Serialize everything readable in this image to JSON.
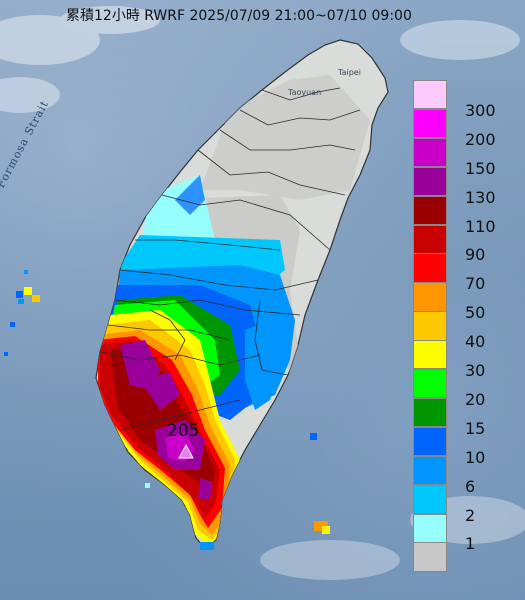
{
  "title": "累積12小時 RWRF 2025/07/09 21:00~07/10 09:00",
  "map_labels": {
    "strait": "Formosa Strait",
    "taoyuan": "Taoyuan",
    "taipei": "Taipei"
  },
  "max_marker": {
    "value": "205",
    "color": "#e880f0"
  },
  "legend": [
    {
      "label": "300",
      "color": "#fdcafd"
    },
    {
      "label": "200",
      "color": "#fd00fd"
    },
    {
      "label": "150",
      "color": "#c800c8"
    },
    {
      "label": "130",
      "color": "#9a009a"
    },
    {
      "label": "110",
      "color": "#9a0000"
    },
    {
      "label": "90",
      "color": "#c80000"
    },
    {
      "label": "70",
      "color": "#fd0000"
    },
    {
      "label": "50",
      "color": "#fd9600"
    },
    {
      "label": "40",
      "color": "#fdc800"
    },
    {
      "label": "30",
      "color": "#fdfd00"
    },
    {
      "label": "20",
      "color": "#00fd00"
    },
    {
      "label": "15",
      "color": "#009600"
    },
    {
      "label": "10",
      "color": "#0064fd"
    },
    {
      "label": "6",
      "color": "#0096fd"
    },
    {
      "label": "2",
      "color": "#00c8fd"
    },
    {
      "label": "1",
      "color": "#96fdfd"
    },
    {
      "label": "",
      "color": "#c8c8c8"
    }
  ],
  "colors": {
    "ocean": "#7495b7",
    "land_no_rain": "#c8c8c8",
    "land_relief": "#d9dcd8"
  }
}
